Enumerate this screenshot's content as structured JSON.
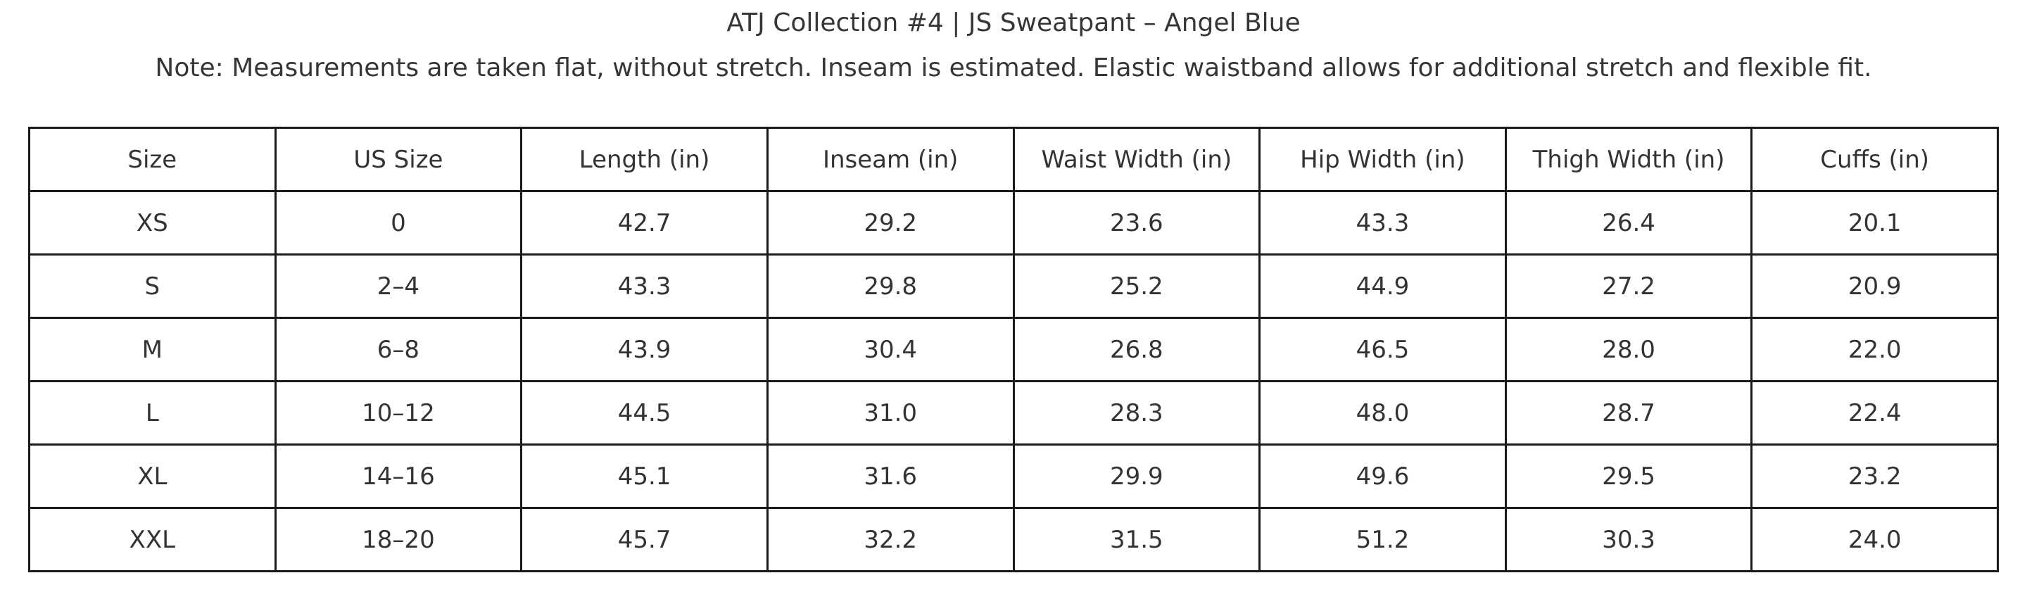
{
  "title": "ATJ Collection #4 | JS Sweatpant – Angel Blue",
  "note": "Note: Measurements are taken flat, without stretch. Inseam is estimated. Elastic waistband allows for additional stretch and flexible fit.",
  "colors": {
    "background": "#ffffff",
    "text": "#363636",
    "table_border": "#1a1a1a"
  },
  "chart_data": {
    "type": "table",
    "title": "ATJ Collection #4 | JS Sweatpant – Angel Blue",
    "note": "Note: Measurements are taken flat, without stretch. Inseam is estimated. Elastic waistband allows for additional stretch and flexible fit.",
    "columns": [
      "Size",
      "US Size",
      "Length (in)",
      "Inseam (in)",
      "Waist Width (in)",
      "Hip Width (in)",
      "Thigh Width (in)",
      "Cuffs (in)"
    ],
    "rows": [
      [
        "XS",
        "0",
        "42.7",
        "29.2",
        "23.6",
        "43.3",
        "26.4",
        "20.1"
      ],
      [
        "S",
        "2–4",
        "43.3",
        "29.8",
        "25.2",
        "44.9",
        "27.2",
        "20.9"
      ],
      [
        "M",
        "6–8",
        "43.9",
        "30.4",
        "26.8",
        "46.5",
        "28.0",
        "22.0"
      ],
      [
        "L",
        "10–12",
        "44.5",
        "31.0",
        "28.3",
        "48.0",
        "28.7",
        "22.4"
      ],
      [
        "XL",
        "14–16",
        "45.1",
        "31.6",
        "29.9",
        "49.6",
        "29.5",
        "23.2"
      ],
      [
        "XXL",
        "18–20",
        "45.7",
        "32.2",
        "31.5",
        "51.2",
        "30.3",
        "24.0"
      ]
    ]
  }
}
